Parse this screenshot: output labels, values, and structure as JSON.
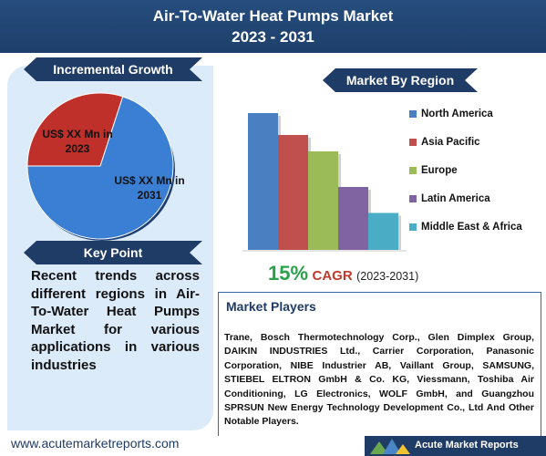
{
  "header": {
    "title_line1": "Air-To-Water Heat Pumps Market",
    "title_line2": "2023 - 2031"
  },
  "left": {
    "incremental_growth_label": "Incremental Growth",
    "key_point_label": "Key Point",
    "key_point_text": "Recent trends across different regions in Air-To-Water Heat Pumps Market for various applications in various industries"
  },
  "right": {
    "market_by_region_label": "Market By Region",
    "cagr": {
      "value": "15%",
      "word": "CAGR",
      "years": "(2023-2031)"
    },
    "players": {
      "title": "Market Players",
      "text": "Trane, Bosch Thermotechnology Corp., Glen Dimplex Group, DAIKIN INDUSTRIES Ltd., Carrier Corporation, Panasonic Corporation, NIBE Industrier AB, Vaillant Group, SAMSUNG, STIEBEL ELTRON GmbH & Co. KG, Viessmann, Toshiba Air Conditioning, LG Electronics, WOLF GmbH, and Guangzhou SPRSUN New Energy Technology Development Co., Ltd And Other Notable Players."
    }
  },
  "footer": {
    "url": "www.acutemarketreports.com",
    "logo_text": "Acute Market Reports"
  },
  "chart_data": [
    {
      "type": "pie",
      "labels": [
        "US$ XX Mn in 2023",
        "US$ XX Mn in 2031"
      ],
      "values": [
        30,
        70
      ],
      "colors": [
        "#c0302a",
        "#3a7fd4"
      ]
    },
    {
      "type": "bar",
      "categories": [
        "North America",
        "Asia Pacific",
        "Europe",
        "Latin America",
        "Middle East & Africa"
      ],
      "values": [
        100,
        84,
        72,
        46,
        27
      ],
      "colors": [
        "#4a7fc1",
        "#c0504d",
        "#9bbb59",
        "#8064a2",
        "#4bacc6"
      ],
      "legend_position": "right"
    }
  ]
}
